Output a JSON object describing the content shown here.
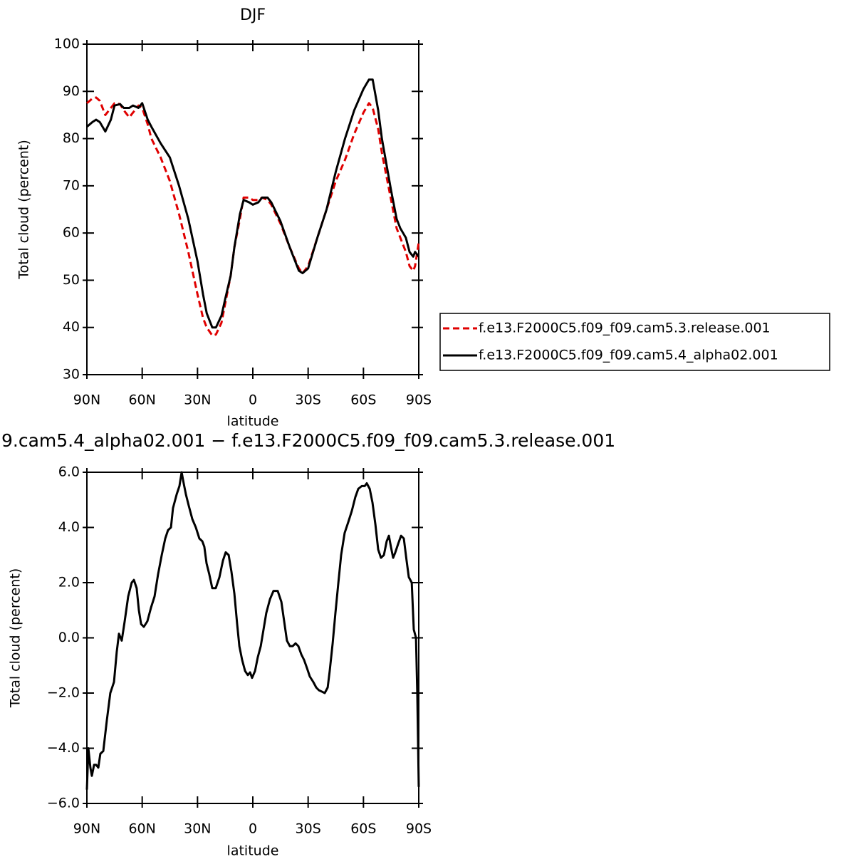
{
  "chart_data": [
    {
      "type": "line",
      "title": "DJF",
      "xlabel": "latitude",
      "ylabel": "Total cloud (percent)",
      "x": [
        90,
        87,
        85,
        83,
        80,
        77,
        75,
        72,
        70,
        67,
        65,
        62,
        60,
        57,
        55,
        50,
        45,
        40,
        35,
        30,
        27,
        25,
        22,
        20,
        17,
        15,
        12,
        10,
        7,
        5,
        2,
        0,
        -3,
        -5,
        -8,
        -10,
        -15,
        -20,
        -25,
        -27,
        -30,
        -35,
        -40,
        -45,
        -50,
        -55,
        -60,
        -63,
        -65,
        -68,
        -70,
        -75,
        -78,
        -80,
        -83,
        -85,
        -87,
        -88,
        -90
      ],
      "series": [
        {
          "name": "f.e13.F2000C5.f09_f09.cam5.3.release.001",
          "color": "#e00000",
          "dashed": true,
          "values": [
            87.5,
            88.5,
            88.7,
            88,
            85,
            86.5,
            87.5,
            87.3,
            86,
            84.5,
            85.5,
            87,
            86.5,
            83,
            80,
            76,
            71,
            64,
            56,
            47,
            42,
            40,
            38.3,
            38.5,
            41,
            45,
            51,
            57,
            63,
            67.5,
            67.5,
            67,
            67,
            67.5,
            67,
            66,
            62,
            57,
            52.5,
            51.5,
            53,
            59,
            65,
            71,
            75.5,
            81,
            85.5,
            87.5,
            86.5,
            82,
            77,
            67,
            61,
            59,
            56,
            53,
            52,
            53,
            58
          ]
        },
        {
          "name": "f.e13.F2000C5.f09_f09.cam5.4_alpha02.001",
          "color": "#000000",
          "dashed": false,
          "values": [
            82.5,
            83.5,
            84,
            83.5,
            81.5,
            84,
            87,
            87.3,
            86.5,
            86.5,
            87,
            86.5,
            87.5,
            84,
            82.5,
            79,
            76,
            70,
            63,
            54,
            47,
            43,
            40,
            40,
            42.5,
            46,
            51,
            57,
            64,
            67,
            66.5,
            66,
            66.5,
            67.5,
            67.5,
            66.5,
            62.5,
            57,
            52,
            51.5,
            52.5,
            59,
            65,
            73,
            80,
            86,
            90.5,
            92.5,
            92.5,
            86,
            80,
            69,
            63,
            61,
            59,
            56,
            55,
            56,
            55
          ]
        }
      ],
      "xlim": [
        90,
        -90
      ],
      "xticks": [
        {
          "value": 90,
          "label": "90N"
        },
        {
          "value": 60,
          "label": "60N"
        },
        {
          "value": 30,
          "label": "30N"
        },
        0,
        {
          "value": -30,
          "label": "30S"
        },
        {
          "value": -60,
          "label": "60S"
        },
        {
          "value": -90,
          "label": "90S"
        }
      ],
      "ylim": [
        30,
        100
      ],
      "yticks": [
        30,
        40,
        50,
        60,
        70,
        80,
        90,
        100
      ],
      "grid": false,
      "legend": "right"
    },
    {
      "type": "line",
      "title": "9.cam5.4_alpha02.001 − f.e13.F2000C5.f09_f09.cam5.3.release.001",
      "xlabel": "latitude",
      "ylabel": "Total cloud (percent)",
      "x": [
        90,
        89.2,
        88.1,
        87.3,
        86.1,
        85.0,
        83.8,
        82.7,
        81.1,
        79.2,
        77.3,
        75.3,
        73.8,
        72.6,
        71.1,
        69.5,
        67.6,
        65.7,
        64.5,
        63.0,
        61.8,
        60.6,
        59.1,
        57.2,
        55.2,
        53.3,
        51.4,
        49.4,
        47.5,
        46.0,
        44.4,
        43.3,
        41.3,
        39.8,
        38.6,
        37.5,
        36.3,
        34.8,
        32.8,
        30.9,
        29.0,
        27.4,
        26.3,
        25.1,
        23.6,
        22.0,
        20.1,
        18.1,
        16.2,
        14.7,
        13.1,
        11.6,
        10.0,
        8.5,
        7.3,
        5.8,
        4.2,
        2.7,
        1.5,
        0.4,
        -1.2,
        -2.7,
        -4.3,
        -5.8,
        -7.3,
        -9.3,
        -11.2,
        -13.5,
        -15.5,
        -17.0,
        -18.5,
        -20.1,
        -21.6,
        -23.2,
        -24.7,
        -26.3,
        -27.8,
        -29.4,
        -30.9,
        -32.8,
        -34.4,
        -35.9,
        -37.5,
        -39.0,
        -40.6,
        -41.7,
        -43.3,
        -44.8,
        -46.4,
        -47.9,
        -49.8,
        -51.8,
        -53.7,
        -55.6,
        -57.2,
        -59.1,
        -60.7,
        -61.8,
        -63.4,
        -64.9,
        -66.5,
        -68.0,
        -69.5,
        -71.1,
        -72.6,
        -73.8,
        -74.9,
        -76.1,
        -77.3,
        -78.8,
        -80.4,
        -81.9,
        -83.4,
        -84.6,
        -86.2,
        -87.3,
        -88.5,
        -89.2,
        -90.0
      ],
      "series": [
        {
          "color": "#000000",
          "dashed": false,
          "values": [
            -5.5,
            -4.0,
            -4.7,
            -5.0,
            -4.6,
            -4.6,
            -4.7,
            -4.2,
            -4.1,
            -3.0,
            -2.0,
            -1.6,
            -0.5,
            0.15,
            -0.1,
            0.6,
            1.5,
            2.0,
            2.1,
            1.8,
            1.0,
            0.5,
            0.4,
            0.6,
            1.1,
            1.5,
            2.3,
            3.0,
            3.6,
            3.9,
            4.0,
            4.7,
            5.2,
            5.5,
            6.0,
            5.6,
            5.2,
            4.8,
            4.3,
            4.0,
            3.6,
            3.5,
            3.3,
            2.7,
            2.3,
            1.8,
            1.8,
            2.2,
            2.8,
            3.1,
            3.0,
            2.4,
            1.6,
            0.5,
            -0.3,
            -0.8,
            -1.2,
            -1.35,
            -1.25,
            -1.45,
            -1.2,
            -0.7,
            -0.3,
            0.3,
            0.9,
            1.4,
            1.7,
            1.7,
            1.3,
            0.6,
            -0.1,
            -0.3,
            -0.3,
            -0.2,
            -0.3,
            -0.6,
            -0.8,
            -1.1,
            -1.4,
            -1.6,
            -1.8,
            -1.9,
            -1.95,
            -2.0,
            -1.8,
            -1.2,
            -0.2,
            0.9,
            2.0,
            3.0,
            3.8,
            4.2,
            4.6,
            5.1,
            5.4,
            5.5,
            5.5,
            5.6,
            5.4,
            4.9,
            4.1,
            3.2,
            2.9,
            3.0,
            3.5,
            3.7,
            3.3,
            2.9,
            3.1,
            3.4,
            3.7,
            3.6,
            2.8,
            2.2,
            2.0,
            0.3,
            0.0,
            -2.0,
            -5.4
          ]
        }
      ],
      "xlim": [
        90,
        -90
      ],
      "xticks": [
        {
          "value": 90,
          "label": "90N"
        },
        {
          "value": 60,
          "label": "60N"
        },
        {
          "value": 30,
          "label": "30N"
        },
        0,
        {
          "value": -30,
          "label": "30S"
        },
        {
          "value": -60,
          "label": "60S"
        },
        {
          "value": -90,
          "label": "90S"
        }
      ],
      "ylim": [
        -6,
        6
      ],
      "yticks": [
        {
          "value": -6,
          "label": "−6.0"
        },
        {
          "value": -4,
          "label": "−4.0"
        },
        {
          "value": -2,
          "label": "−2.0"
        },
        {
          "value": 0,
          "label": "0.0"
        },
        {
          "value": 2,
          "label": "2.0"
        },
        {
          "value": 4,
          "label": "4.0"
        },
        {
          "value": 6,
          "label": "6.0"
        }
      ],
      "grid": false
    }
  ]
}
